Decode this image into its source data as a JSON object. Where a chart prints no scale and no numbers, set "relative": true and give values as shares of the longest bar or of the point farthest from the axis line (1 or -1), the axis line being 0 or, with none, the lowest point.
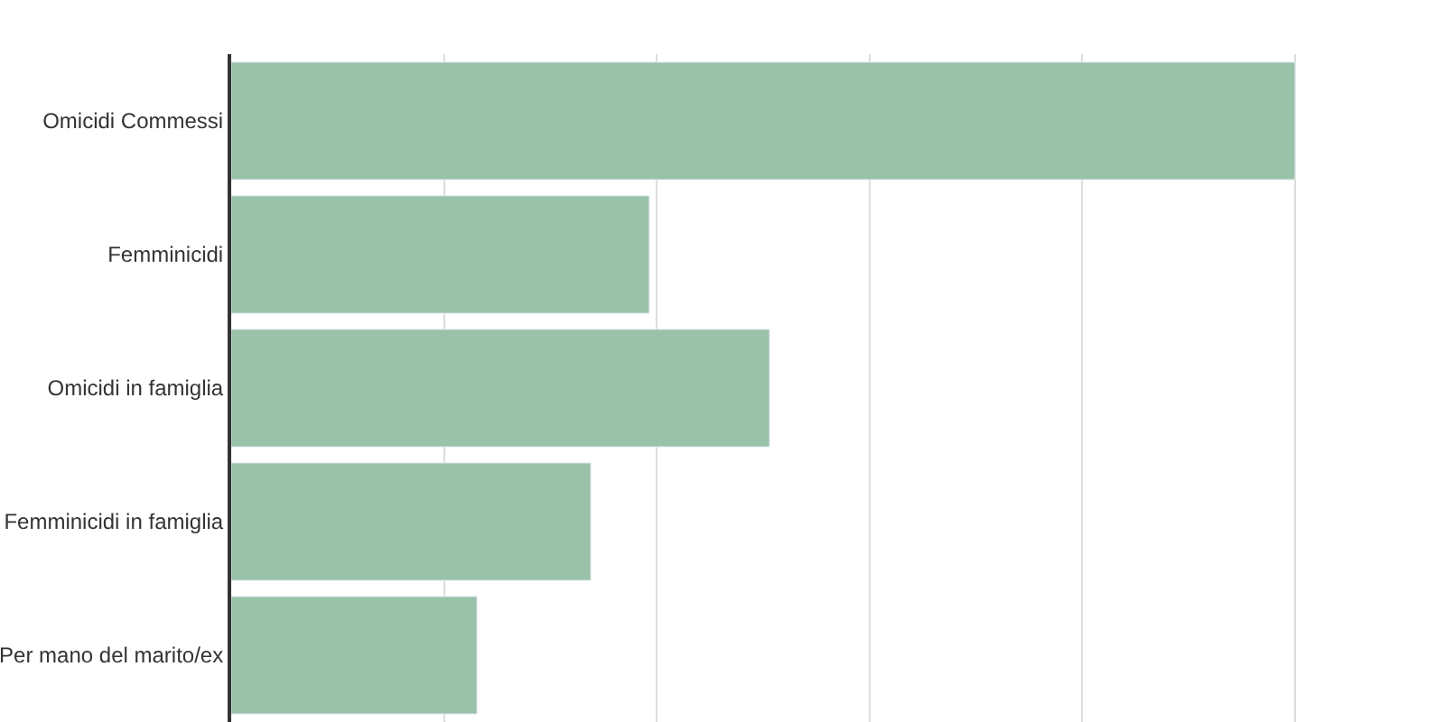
{
  "chart_data": {
    "type": "bar",
    "orientation": "horizontal",
    "relative": true,
    "grid": "x",
    "categories": [
      "Omicidi Commessi",
      "Femminicidi",
      "Omicidi in famiglia",
      "Femminicidi in famiglia",
      "Per mano del marito/ex"
    ],
    "values": [
      1,
      0.393,
      0.506,
      0.338,
      0.231
    ],
    "color": "#99c2a8"
  }
}
